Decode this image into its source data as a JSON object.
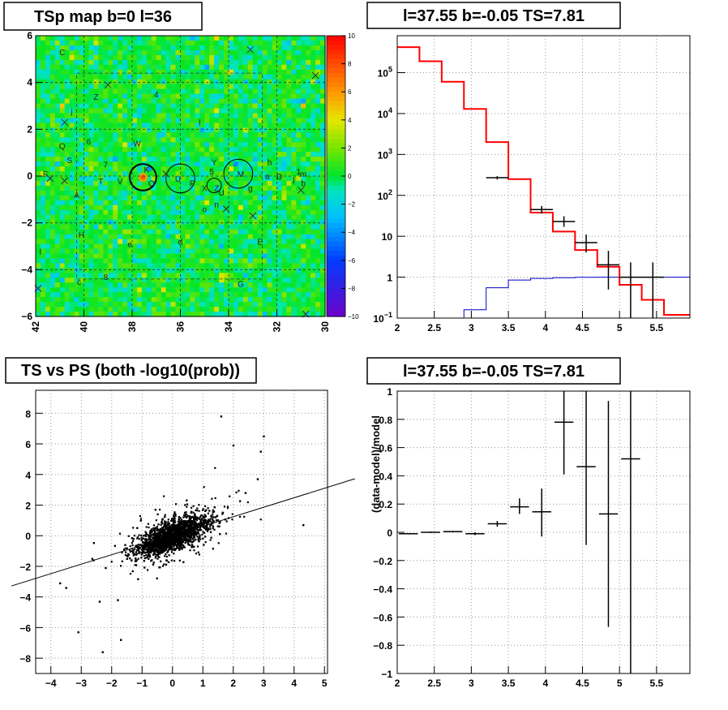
{
  "colors": {
    "model": "#ff0000",
    "source": "#0000cc",
    "data": "#000000",
    "grid": "#999999"
  },
  "chart_data": [
    {
      "type": "heatmap",
      "title": "TSp map b=0 l=36",
      "xlim": [
        42,
        30
      ],
      "ylim": [
        -6,
        6
      ],
      "x_ticks": [
        "42",
        "40",
        "38",
        "36",
        "34",
        "32",
        "30"
      ],
      "y_ticks": [
        "6",
        "4",
        "2",
        "0",
        "−2",
        "−4",
        "−6"
      ],
      "colorbar_ticks": [
        "10",
        "8",
        "6",
        "4",
        "2",
        "0",
        "−2",
        "−4",
        "−6",
        "−8",
        "−10"
      ],
      "zlim": [
        -10,
        10
      ],
      "source_labels": [
        {
          "t": "C",
          "l": 40.9,
          "b": 5.3
        },
        {
          "t": "Z",
          "l": 39.5,
          "b": 3.4
        },
        {
          "t": "4",
          "l": 37.0,
          "b": 3.5
        },
        {
          "t": "j",
          "l": 40.5,
          "b": 2.8
        },
        {
          "t": "l",
          "l": 35.2,
          "b": 2.3
        },
        {
          "t": "6",
          "l": 39.8,
          "b": 1.5
        },
        {
          "t": "W",
          "l": 37.8,
          "b": 1.4
        },
        {
          "t": "Q",
          "l": 40.9,
          "b": 1.3
        },
        {
          "t": "S",
          "l": 40.6,
          "b": 0.7
        },
        {
          "t": "7",
          "l": 39.1,
          "b": 0.5
        },
        {
          "t": "Y",
          "l": 34.6,
          "b": 0.6
        },
        {
          "t": "h",
          "l": 32.3,
          "b": 0.6
        },
        {
          "t": "F",
          "l": 41.6,
          "b": 0.1
        },
        {
          "t": "K",
          "l": 37.4,
          "b": 0.3
        },
        {
          "t": "5",
          "l": 34.7,
          "b": 0.2
        },
        {
          "t": "M",
          "l": 33.5,
          "b": 0.1
        },
        {
          "t": "a",
          "l": 32.4,
          "b": 0.0
        },
        {
          "t": "D",
          "l": 31.9,
          "b": 0.0
        },
        {
          "t": "1",
          "l": 31.1,
          "b": 0.2
        },
        {
          "t": "m",
          "l": 30.9,
          "b": 0.1
        },
        {
          "t": "j",
          "l": 31.3,
          "b": -0.1
        },
        {
          "t": "T",
          "l": 39.3,
          "b": -0.2
        },
        {
          "t": "V",
          "l": 38.5,
          "b": -0.2
        },
        {
          "t": "U",
          "l": 36.1,
          "b": -0.1
        },
        {
          "t": "O",
          "l": 37.2,
          "b": -0.3
        },
        {
          "t": "P",
          "l": 35.5,
          "b": -0.3
        },
        {
          "t": "X",
          "l": 35.0,
          "b": -0.5
        },
        {
          "t": "b",
          "l": 30.9,
          "b": -0.3
        },
        {
          "t": "g",
          "l": 33.1,
          "b": -0.5
        },
        {
          "t": "Z",
          "l": 34.5,
          "b": -0.5
        },
        {
          "t": "U",
          "l": 34.3,
          "b": -0.7
        },
        {
          "t": "A",
          "l": 40.3,
          "b": -0.8
        },
        {
          "t": "n",
          "l": 34.5,
          "b": -1.2
        },
        {
          "t": "o",
          "l": 35.0,
          "b": -1.4
        },
        {
          "t": "H",
          "l": 40.1,
          "b": -2.5
        },
        {
          "t": "e",
          "l": 38.1,
          "b": -2.9
        },
        {
          "t": "d",
          "l": 36.0,
          "b": -2.8
        },
        {
          "t": "E",
          "l": 32.7,
          "b": -2.8
        },
        {
          "t": "I",
          "l": 41.8,
          "b": -3.2
        },
        {
          "t": "8",
          "l": 39.1,
          "b": -4.3
        },
        {
          "t": "c",
          "l": 40.2,
          "b": -4.5
        },
        {
          "t": "G",
          "l": 33.5,
          "b": -4.6
        }
      ],
      "circles": [
        {
          "l": 37.55,
          "b": -0.05,
          "r": 0.55
        },
        {
          "l": 36.0,
          "b": -0.1,
          "r": 0.6
        },
        {
          "l": 34.6,
          "b": -0.4,
          "r": 0.3
        },
        {
          "l": 33.6,
          "b": 0.1,
          "r": 0.6
        }
      ],
      "crosses": [
        {
          "l": 33.1,
          "b": 5.4
        },
        {
          "l": 30.4,
          "b": 4.3
        },
        {
          "l": 39.0,
          "b": 3.9
        },
        {
          "l": 40.8,
          "b": 2.3
        },
        {
          "l": 36.6,
          "b": 0.1
        },
        {
          "l": 34.1,
          "b": -1.4
        },
        {
          "l": 31.0,
          "b": -0.6
        },
        {
          "l": 33.0,
          "b": -1.7
        },
        {
          "l": 41.9,
          "b": -4.8
        },
        {
          "l": 30.8,
          "b": -5.9
        },
        {
          "l": 40.8,
          "b": -0.2
        },
        {
          "l": 41.4,
          "b": -0.1
        }
      ]
    },
    {
      "type": "line",
      "title": "l=37.55 b=-0.05 TS=7.81",
      "xlim": [
        2,
        5.95
      ],
      "ylim": [
        0.1,
        800000
      ],
      "log_y": true,
      "x_ticks": [
        "2",
        "2.5",
        "3",
        "3.5",
        "4",
        "4.5",
        "5",
        "5.5"
      ],
      "y_ticks": [
        "10^5",
        "10^4",
        "10^3",
        "10^2",
        "10",
        "1",
        "10^−1"
      ],
      "bin_edges": [
        2,
        2.3,
        2.6,
        2.9,
        3.2,
        3.5,
        3.8,
        4.1,
        4.4,
        4.7,
        5.0,
        5.3,
        5.6,
        5.95
      ],
      "series": [
        {
          "values": [
            420000,
            190000,
            60000,
            13000,
            2000,
            250,
            38,
            13,
            4.6,
            1.8,
            0.65,
            0.28,
            0.12
          ]
        },
        {
          "values": [
            0.1,
            0.1,
            0.1,
            0.16,
            0.55,
            0.85,
            0.93,
            0.97,
            0.99,
            1.0,
            1.0,
            1.0,
            1.0
          ]
        }
      ],
      "points": [
        {
          "x": 3.35,
          "y": 270,
          "lo": 245,
          "hi": 295
        },
        {
          "x": 3.95,
          "y": 45,
          "lo": 36,
          "hi": 55
        },
        {
          "x": 4.25,
          "y": 23,
          "lo": 17,
          "hi": 31
        },
        {
          "x": 4.55,
          "y": 7,
          "lo": 4,
          "hi": 11
        },
        {
          "x": 4.85,
          "y": 2,
          "lo": 0.5,
          "hi": 4.4
        },
        {
          "x": 5.15,
          "y": 1,
          "lo": 0.1,
          "hi": 2.3
        },
        {
          "x": 5.45,
          "y": 1,
          "lo": 0.1,
          "hi": 2.3
        }
      ]
    },
    {
      "type": "scatter",
      "title": "TS vs PS (both -log10(prob))",
      "xlim": [
        -4.5,
        5.1
      ],
      "ylim": [
        -9,
        9.5
      ],
      "x_ticks": [
        "−4",
        "−3",
        "−2",
        "−1",
        "0",
        "1",
        "2",
        "3",
        "4",
        "5"
      ],
      "y_ticks": [
        "8",
        "6",
        "4",
        "2",
        "0",
        "−2",
        "−4",
        "−6",
        "−8"
      ],
      "fit_line": {
        "slope": 1.0,
        "intercept": 0.0
      }
    },
    {
      "type": "scatter",
      "title": "l=37.55 b=-0.05 TS=7.81",
      "ylabel": "(data-model)/model",
      "xlim": [
        2,
        5.95
      ],
      "ylim": [
        -1,
        1
      ],
      "x_ticks": [
        "2",
        "2.5",
        "3",
        "3.5",
        "4",
        "4.5",
        "5",
        "5.5"
      ],
      "y_ticks": [
        "1",
        "0.8",
        "0.6",
        "0.4",
        "0.2",
        "0",
        "−0.2",
        "−0.4",
        "−0.6",
        "−0.8",
        "−1"
      ],
      "points": [
        {
          "x1": 2.0,
          "x2": 2.3,
          "y": -0.01,
          "lo": -0.015,
          "hi": -0.005
        },
        {
          "x1": 2.3,
          "x2": 2.6,
          "y": 0.0,
          "lo": -0.005,
          "hi": 0.005
        },
        {
          "x1": 2.6,
          "x2": 2.9,
          "y": 0.005,
          "lo": 0.0,
          "hi": 0.01
        },
        {
          "x1": 2.9,
          "x2": 3.2,
          "y": -0.01,
          "lo": -0.02,
          "hi": 0.0
        },
        {
          "x1": 3.2,
          "x2": 3.5,
          "y": 0.06,
          "lo": 0.04,
          "hi": 0.08
        },
        {
          "x1": 3.5,
          "x2": 3.8,
          "y": 0.18,
          "lo": 0.13,
          "hi": 0.24
        },
        {
          "x1": 3.8,
          "x2": 4.1,
          "y": 0.145,
          "lo": -0.03,
          "hi": 0.31
        },
        {
          "x1": 4.1,
          "x2": 4.4,
          "y": 0.78,
          "lo": 0.41,
          "hi": 1.0
        },
        {
          "x1": 4.4,
          "x2": 4.7,
          "y": 0.465,
          "lo": -0.09,
          "hi": 1.0
        },
        {
          "x1": 4.7,
          "x2": 5.0,
          "y": 0.13,
          "lo": -0.67,
          "hi": 0.93
        },
        {
          "x1": 5.0,
          "x2": 5.3,
          "y": 0.52,
          "lo": -1.0,
          "hi": 1.0
        }
      ]
    }
  ]
}
